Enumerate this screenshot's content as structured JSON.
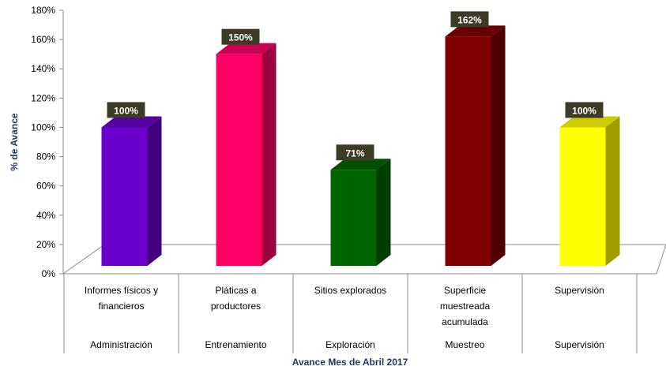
{
  "chart_data": {
    "type": "bar",
    "title": "",
    "xlabel": "Avance Mes de Abril 2017",
    "ylabel": "% de Avance",
    "ylim": [
      0,
      180
    ],
    "yticks": [
      0,
      20,
      40,
      60,
      80,
      100,
      120,
      140,
      160,
      180
    ],
    "ytick_suffix": "%",
    "grid": false,
    "legend": "none",
    "categories": [
      {
        "label": [
          "Informes físicos y",
          "financieros"
        ],
        "group": "Administración"
      },
      {
        "label": [
          "Pláticas a",
          "productores"
        ],
        "group": "Entrenamiento"
      },
      {
        "label": [
          "Sitios explorados"
        ],
        "group": "Exploración"
      },
      {
        "label": [
          "Superficie",
          "muestreada",
          "acumulada"
        ],
        "group": "Muestreo"
      },
      {
        "label": [
          "Supervisión"
        ],
        "group": "Supervisión"
      }
    ],
    "values": [
      100,
      150,
      71,
      162,
      100
    ],
    "data_labels": [
      "100%",
      "150%",
      "71%",
      "162%",
      "100%"
    ],
    "colors": [
      "#6a00cc",
      "#ff0066",
      "#006400",
      "#800000",
      "#ffff00"
    ],
    "label_box_color": "#3d3a26",
    "axis_title_color": "#1f3864"
  }
}
